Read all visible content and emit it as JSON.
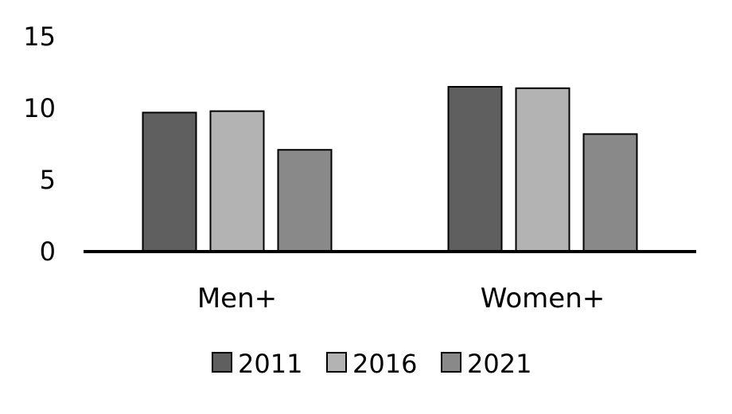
{
  "chart_data": {
    "type": "bar",
    "title": "",
    "xlabel": "",
    "ylabel": "",
    "categories": [
      "Men+",
      "Women+"
    ],
    "series": [
      {
        "name": "2011",
        "values": [
          9.7,
          11.5
        ],
        "color": "#5f5f5f"
      },
      {
        "name": "2016",
        "values": [
          9.8,
          11.4
        ],
        "color": "#b3b3b3"
      },
      {
        "name": "2021",
        "values": [
          7.1,
          8.2
        ],
        "color": "#898989"
      }
    ],
    "ylim": [
      0,
      15
    ],
    "yticks": [
      "0",
      "5",
      "10",
      "15"
    ],
    "grid": false,
    "legend_position": "bottom"
  }
}
